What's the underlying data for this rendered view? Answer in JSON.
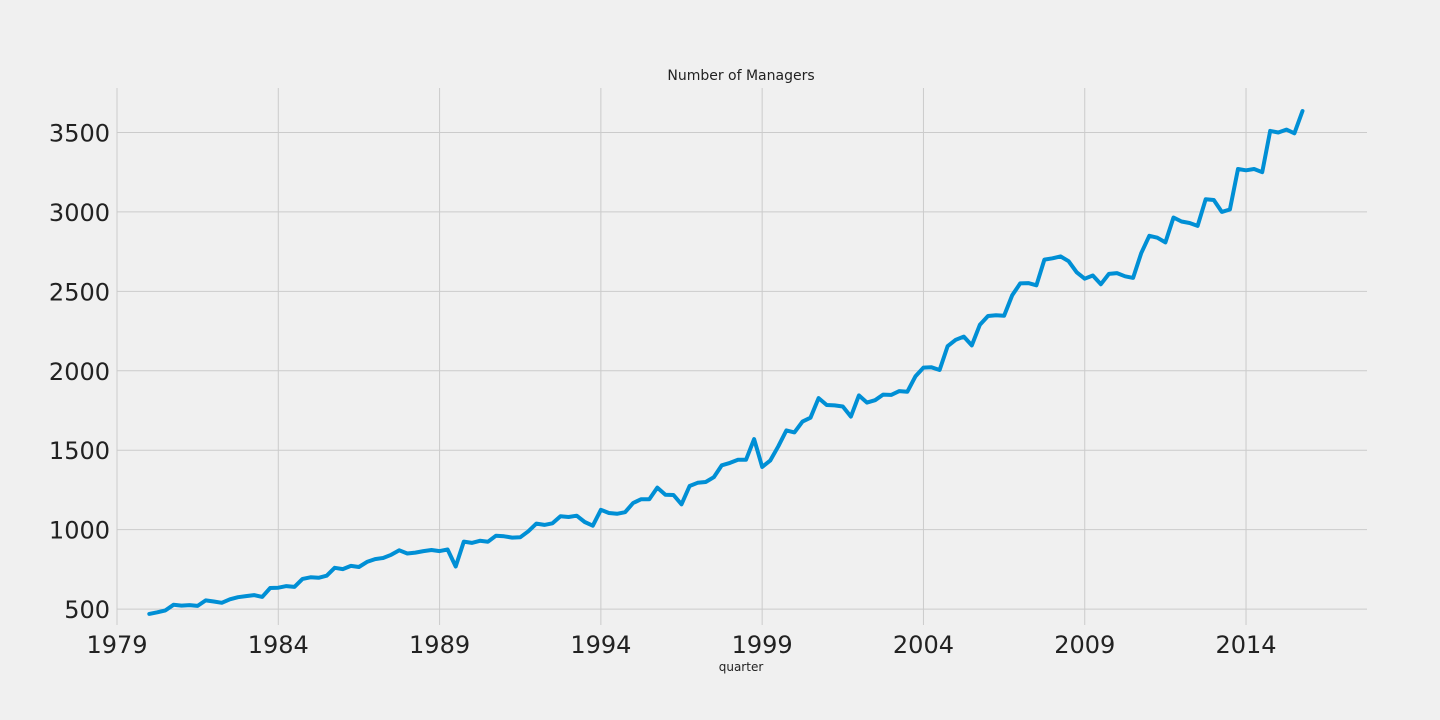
{
  "chart_data": {
    "type": "line",
    "title": "Number of Managers",
    "xlabel": "quarter",
    "ylabel": "",
    "xlim": [
      1979.0,
      2017.75
    ],
    "ylim": [
      400,
      3780
    ],
    "x_ticks": [
      1979,
      1984,
      1989,
      1994,
      1999,
      2004,
      2009,
      2014
    ],
    "y_ticks": [
      500,
      1000,
      1500,
      2000,
      2500,
      3000,
      3500
    ],
    "grid": true,
    "colors": {
      "background": "#f0f0f0",
      "grid": "#cbcbcb",
      "series": "#008fd5"
    },
    "x_start": "1980Q1",
    "x_step": "quarter",
    "series": [
      {
        "values": [
          470,
          480,
          492,
          527,
          522,
          525,
          520,
          555,
          548,
          540,
          562,
          575,
          582,
          588,
          577,
          633,
          635,
          645,
          640,
          690,
          700,
          697,
          710,
          760,
          752,
          772,
          765,
          797,
          815,
          822,
          842,
          870,
          850,
          856,
          865,
          872,
          865,
          875,
          768,
          925,
          917,
          930,
          924,
          962,
          958,
          950,
          952,
          990,
          1038,
          1030,
          1040,
          1085,
          1080,
          1088,
          1048,
          1025,
          1125,
          1105,
          1100,
          1110,
          1168,
          1192,
          1192,
          1265,
          1220,
          1218,
          1160,
          1275,
          1295,
          1300,
          1330,
          1405,
          1420,
          1440,
          1440,
          1570,
          1395,
          1435,
          1525,
          1625,
          1612,
          1680,
          1705,
          1828,
          1785,
          1782,
          1775,
          1712,
          1845,
          1800,
          1815,
          1850,
          1848,
          1872,
          1868,
          1965,
          2020,
          2022,
          2005,
          2155,
          2195,
          2215,
          2160,
          2290,
          2345,
          2350,
          2347,
          2475,
          2550,
          2552,
          2538,
          2700,
          2708,
          2720,
          2690,
          2620,
          2580,
          2600,
          2545,
          2610,
          2615,
          2595,
          2585,
          2740,
          2850,
          2838,
          2808,
          2965,
          2940,
          2930,
          2912,
          3080,
          3075,
          3000,
          3015,
          3270,
          3262,
          3270,
          3250,
          3510,
          3500,
          3518,
          3495,
          3635
        ]
      }
    ]
  }
}
